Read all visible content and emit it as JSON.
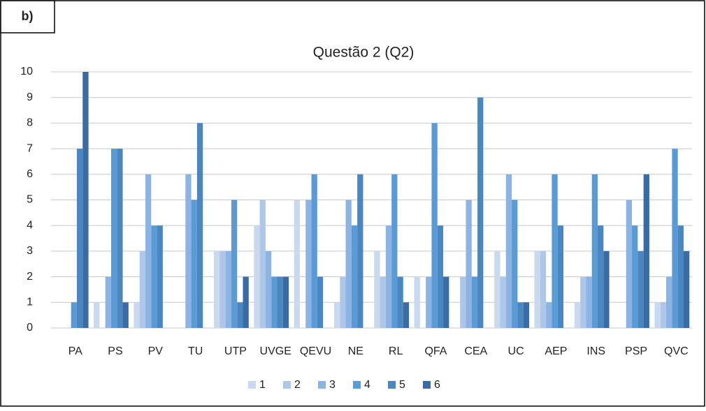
{
  "panel_label": "b)",
  "chart_data": {
    "type": "bar",
    "title": "Questão 2 (Q2)",
    "categories": [
      "PA",
      "PS",
      "PV",
      "TU",
      "UTP",
      "UVGE",
      "QEVU",
      "NE",
      "RL",
      "QFA",
      "CEA",
      "UC",
      "AEP",
      "INS",
      "PSP",
      "QVC"
    ],
    "series": [
      {
        "name": "1",
        "color": "#cad9ee",
        "values": [
          0,
          1,
          1,
          0,
          3,
          4,
          5,
          1,
          3,
          2,
          0,
          3,
          3,
          1,
          0,
          1
        ]
      },
      {
        "name": "2",
        "color": "#aec7e8",
        "values": [
          0,
          0,
          3,
          0,
          3,
          5,
          0,
          2,
          2,
          0,
          2,
          2,
          3,
          2,
          0,
          1
        ]
      },
      {
        "name": "3",
        "color": "#8db3e2",
        "values": [
          0,
          2,
          6,
          6,
          3,
          3,
          5,
          5,
          4,
          2,
          5,
          6,
          1,
          2,
          5,
          2
        ]
      },
      {
        "name": "4",
        "color": "#5b9bd5",
        "values": [
          1,
          7,
          4,
          5,
          5,
          2,
          6,
          4,
          6,
          8,
          2,
          5,
          6,
          6,
          4,
          7
        ]
      },
      {
        "name": "5",
        "color": "#4a86c0",
        "values": [
          7,
          7,
          4,
          8,
          1,
          2,
          2,
          6,
          2,
          4,
          9,
          1,
          4,
          4,
          3,
          4
        ]
      },
      {
        "name": "6",
        "color": "#3a6ca3",
        "values": [
          10,
          1,
          0,
          0,
          2,
          2,
          0,
          0,
          1,
          2,
          0,
          1,
          0,
          3,
          6,
          3
        ]
      }
    ],
    "ylim": [
      0,
      10
    ],
    "yticks": [
      0,
      1,
      2,
      3,
      4,
      5,
      6,
      7,
      8,
      9,
      10
    ],
    "grid": true,
    "legend": "bottom"
  }
}
